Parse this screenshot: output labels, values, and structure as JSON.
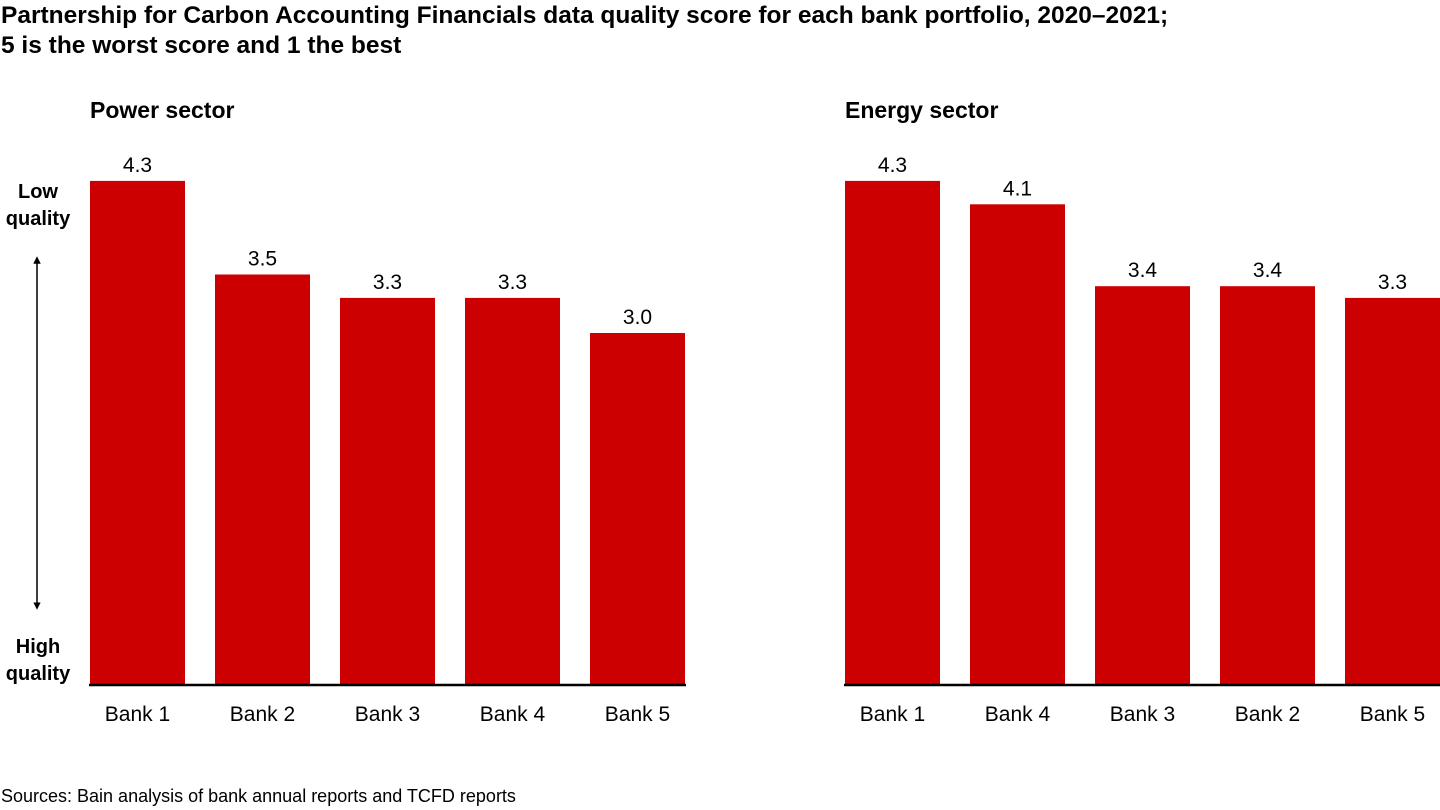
{
  "title_lines": [
    "Partnership for Carbon Accounting Financials data quality score for each bank portfolio, 2020–2021;",
    "5 is the worst score and 1 the best"
  ],
  "y_axis_labels": {
    "top": [
      "Low",
      "quality"
    ],
    "bottom": [
      "High",
      "quality"
    ]
  },
  "source": "Sources: Bain analysis of bank annual reports and TCFD reports",
  "colors": {
    "bar": "#cc0000",
    "axis": "#000000"
  },
  "chart_data": [
    {
      "type": "bar",
      "title": "Power sector",
      "categories": [
        "Bank 1",
        "Bank 2",
        "Bank 3",
        "Bank 4",
        "Bank 5"
      ],
      "values": [
        4.3,
        3.5,
        3.3,
        3.3,
        3.0
      ],
      "data_labels": [
        "4.3",
        "3.5",
        "3.3",
        "3.3",
        "3.0"
      ],
      "ylim": [
        0,
        4.5
      ],
      "grid": false,
      "legend": "none"
    },
    {
      "type": "bar",
      "title": "Energy sector",
      "categories": [
        "Bank 1",
        "Bank 4",
        "Bank 3",
        "Bank 2",
        "Bank 5"
      ],
      "values": [
        4.3,
        4.1,
        3.4,
        3.4,
        3.3
      ],
      "data_labels": [
        "4.3",
        "4.1",
        "3.4",
        "3.4",
        "3.3"
      ],
      "ylim": [
        0,
        4.5
      ],
      "grid": false,
      "legend": "none"
    }
  ]
}
